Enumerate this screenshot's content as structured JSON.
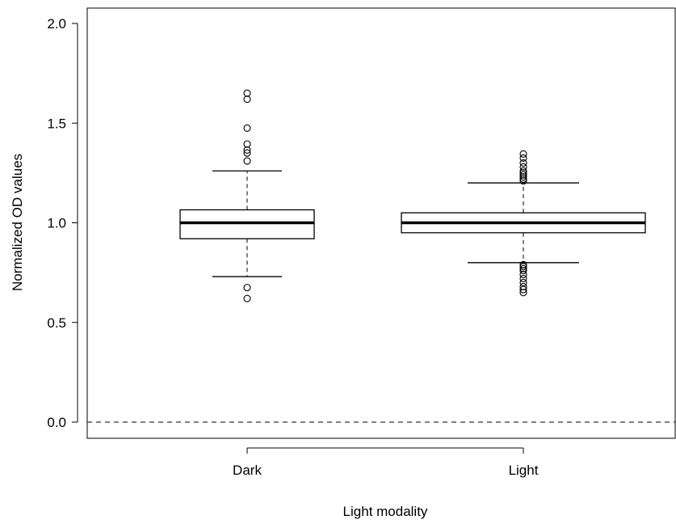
{
  "chart_data": {
    "type": "box",
    "xlabel": "Light modality",
    "ylabel": "Normalized OD values",
    "ylim": [
      0,
      2
    ],
    "yticks": [
      0.0,
      0.5,
      1.0,
      1.5,
      2.0
    ],
    "ytick_labels": [
      "0.0",
      "0.5",
      "1.0",
      "1.5",
      "2.0"
    ],
    "categories": [
      "Dark",
      "Light"
    ],
    "boxes": [
      {
        "name": "Dark",
        "whisker_low": 0.73,
        "q1": 0.92,
        "median": 1.0,
        "q3": 1.065,
        "whisker_high": 1.26,
        "outliers": [
          1.65,
          1.62,
          1.475,
          1.395,
          1.365,
          1.35,
          1.31,
          0.675,
          0.62
        ]
      },
      {
        "name": "Light",
        "whisker_low": 0.8,
        "q1": 0.95,
        "median": 1.0,
        "q3": 1.05,
        "whisker_high": 1.2,
        "outliers": [
          1.345,
          1.325,
          1.3,
          1.28,
          1.26,
          1.25,
          1.24,
          1.23,
          1.22,
          1.21,
          0.79,
          0.78,
          0.77,
          0.76,
          0.74,
          0.72,
          0.7,
          0.68,
          0.665,
          0.65
        ]
      }
    ],
    "reference_line": {
      "y": 0.0,
      "style": "dashed"
    },
    "grid": false,
    "colors": {
      "box_fill": "#ffffff",
      "line": "#000000"
    }
  }
}
